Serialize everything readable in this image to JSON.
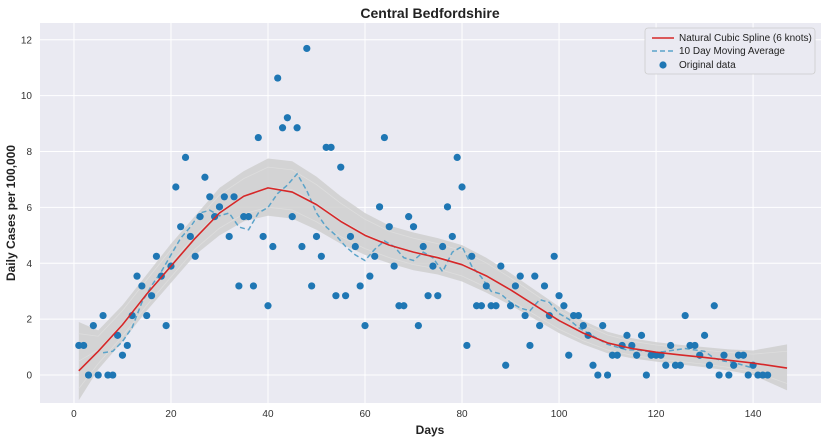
{
  "chart_data": {
    "type": "scatter",
    "title": "Central Bedfordshire",
    "xlabel": "Days",
    "ylabel": "Daily Cases per 100,000",
    "xlim": [
      -7,
      154
    ],
    "ylim": [
      -1,
      12.6
    ],
    "xticks": [
      0,
      20,
      40,
      60,
      80,
      100,
      120,
      140
    ],
    "yticks": [
      0,
      2,
      4,
      6,
      8,
      10,
      12
    ],
    "grid": true,
    "legend_position": "top-right",
    "colors": {
      "background": "#EAEAF2",
      "grid": "#ffffff",
      "spline": "#D62728",
      "moving_average": "#5BA3C9",
      "points": "#1F77B4",
      "band": "#CFCFCF"
    },
    "series": [
      {
        "name": "Natural Cubic Spline (6 knots)",
        "style": "line",
        "x": [
          1,
          5,
          10,
          15,
          20,
          25,
          30,
          35,
          40,
          45,
          50,
          55,
          60,
          65,
          70,
          75,
          80,
          85,
          90,
          95,
          100,
          105,
          110,
          115,
          120,
          125,
          130,
          135,
          140,
          147
        ],
        "y": [
          0.15,
          0.85,
          1.8,
          2.9,
          3.9,
          4.9,
          5.8,
          6.4,
          6.7,
          6.55,
          6.1,
          5.5,
          5.0,
          4.65,
          4.4,
          4.2,
          3.95,
          3.55,
          3.05,
          2.5,
          1.95,
          1.5,
          1.15,
          0.95,
          0.82,
          0.72,
          0.63,
          0.53,
          0.43,
          0.25
        ]
      },
      {
        "name": "10 Day Moving Average",
        "style": "dashed-line",
        "x": [
          6,
          8,
          10,
          12,
          14,
          16,
          18,
          20,
          22,
          24,
          26,
          28,
          30,
          32,
          34,
          36,
          38,
          40,
          42,
          44,
          46,
          48,
          50,
          52,
          54,
          56,
          58,
          60,
          62,
          64,
          66,
          68,
          70,
          72,
          74,
          76,
          78,
          80,
          82,
          84,
          86,
          88,
          90,
          92,
          94,
          96,
          98,
          100,
          102,
          104,
          106,
          108,
          110,
          112,
          114,
          116,
          118,
          120,
          122,
          124,
          126,
          128,
          130,
          132,
          134,
          136,
          138,
          140
        ],
        "y": [
          0.8,
          0.85,
          1.2,
          1.7,
          2.6,
          3.2,
          3.7,
          4.3,
          4.9,
          5.3,
          5.8,
          5.9,
          5.7,
          5.8,
          5.3,
          5.2,
          5.8,
          6.0,
          6.5,
          6.8,
          7.2,
          6.6,
          5.8,
          5.3,
          5.0,
          4.6,
          4.3,
          4.1,
          4.5,
          4.8,
          4.6,
          4.2,
          4.1,
          4.4,
          4.2,
          3.7,
          4.4,
          4.6,
          3.9,
          3.5,
          3.0,
          2.9,
          2.6,
          2.4,
          2.3,
          2.7,
          2.6,
          2.2,
          2.0,
          1.7,
          1.5,
          1.3,
          1.1,
          1.0,
          0.9,
          0.9,
          0.85,
          0.8,
          0.85,
          0.9,
          0.95,
          0.9,
          0.85,
          0.6,
          0.5,
          0.45,
          0.35,
          0.25
        ]
      },
      {
        "name": "Original data",
        "style": "points",
        "points": [
          [
            1,
            1.06
          ],
          [
            2,
            1.06
          ],
          [
            3,
            0
          ],
          [
            4,
            1.77
          ],
          [
            5,
            0
          ],
          [
            6,
            2.13
          ],
          [
            7,
            0
          ],
          [
            8,
            0
          ],
          [
            9,
            1.42
          ],
          [
            10,
            0.71
          ],
          [
            11,
            1.06
          ],
          [
            12,
            2.13
          ],
          [
            13,
            3.54
          ],
          [
            14,
            3.19
          ],
          [
            15,
            2.13
          ],
          [
            16,
            2.84
          ],
          [
            17,
            4.25
          ],
          [
            18,
            3.54
          ],
          [
            19,
            1.77
          ],
          [
            20,
            3.9
          ],
          [
            21,
            6.73
          ],
          [
            22,
            5.31
          ],
          [
            23,
            7.79
          ],
          [
            24,
            4.96
          ],
          [
            25,
            4.25
          ],
          [
            26,
            5.67
          ],
          [
            27,
            7.08
          ],
          [
            28,
            6.38
          ],
          [
            29,
            5.67
          ],
          [
            30,
            6.02
          ],
          [
            31,
            6.38
          ],
          [
            32,
            4.96
          ],
          [
            33,
            6.38
          ],
          [
            34,
            3.19
          ],
          [
            35,
            5.67
          ],
          [
            36,
            5.67
          ],
          [
            37,
            3.19
          ],
          [
            38,
            8.5
          ],
          [
            39,
            4.96
          ],
          [
            40,
            2.48
          ],
          [
            41,
            4.6
          ],
          [
            42,
            10.63
          ],
          [
            43,
            8.85
          ],
          [
            44,
            9.21
          ],
          [
            45,
            5.67
          ],
          [
            46,
            8.85
          ],
          [
            47,
            4.6
          ],
          [
            48,
            11.69
          ],
          [
            49,
            3.19
          ],
          [
            50,
            4.96
          ],
          [
            51,
            4.25
          ],
          [
            52,
            8.15
          ],
          [
            53,
            8.15
          ],
          [
            54,
            2.84
          ],
          [
            55,
            7.44
          ],
          [
            56,
            2.84
          ],
          [
            57,
            4.96
          ],
          [
            58,
            4.6
          ],
          [
            59,
            3.19
          ],
          [
            60,
            1.77
          ],
          [
            61,
            3.54
          ],
          [
            62,
            4.25
          ],
          [
            63,
            6.02
          ],
          [
            64,
            8.5
          ],
          [
            65,
            5.31
          ],
          [
            66,
            3.9
          ],
          [
            67,
            2.48
          ],
          [
            68,
            2.48
          ],
          [
            69,
            5.67
          ],
          [
            70,
            5.31
          ],
          [
            71,
            1.77
          ],
          [
            72,
            4.6
          ],
          [
            73,
            2.84
          ],
          [
            74,
            3.9
          ],
          [
            75,
            2.84
          ],
          [
            76,
            4.6
          ],
          [
            77,
            6.02
          ],
          [
            78,
            4.96
          ],
          [
            79,
            7.79
          ],
          [
            80,
            6.73
          ],
          [
            81,
            1.06
          ],
          [
            82,
            4.25
          ],
          [
            83,
            2.48
          ],
          [
            84,
            2.48
          ],
          [
            85,
            3.19
          ],
          [
            86,
            2.48
          ],
          [
            87,
            2.48
          ],
          [
            88,
            3.9
          ],
          [
            89,
            0.35
          ],
          [
            90,
            2.48
          ],
          [
            91,
            3.19
          ],
          [
            92,
            3.54
          ],
          [
            93,
            2.13
          ],
          [
            94,
            1.06
          ],
          [
            95,
            3.54
          ],
          [
            96,
            1.77
          ],
          [
            97,
            3.19
          ],
          [
            98,
            2.13
          ],
          [
            99,
            4.25
          ],
          [
            100,
            2.84
          ],
          [
            101,
            2.48
          ],
          [
            102,
            0.71
          ],
          [
            103,
            2.13
          ],
          [
            104,
            2.13
          ],
          [
            105,
            1.77
          ],
          [
            106,
            1.42
          ],
          [
            107,
            0.35
          ],
          [
            108,
            0
          ],
          [
            109,
            1.77
          ],
          [
            110,
            0
          ],
          [
            111,
            0.71
          ],
          [
            112,
            0.71
          ],
          [
            113,
            1.06
          ],
          [
            114,
            1.42
          ],
          [
            115,
            1.06
          ],
          [
            116,
            0.71
          ],
          [
            117,
            1.42
          ],
          [
            118,
            0
          ],
          [
            119,
            0.71
          ],
          [
            120,
            0.71
          ],
          [
            121,
            0.71
          ],
          [
            122,
            0.35
          ],
          [
            123,
            1.06
          ],
          [
            124,
            0.35
          ],
          [
            125,
            0.35
          ],
          [
            126,
            2.13
          ],
          [
            127,
            1.06
          ],
          [
            128,
            1.06
          ],
          [
            129,
            0.71
          ],
          [
            130,
            1.42
          ],
          [
            131,
            0.35
          ],
          [
            132,
            2.48
          ],
          [
            133,
            0
          ],
          [
            134,
            0.71
          ],
          [
            135,
            0
          ],
          [
            136,
            0.35
          ],
          [
            137,
            0.71
          ],
          [
            138,
            0.71
          ],
          [
            139,
            0
          ],
          [
            140,
            0.35
          ],
          [
            141,
            0
          ],
          [
            142,
            0
          ],
          [
            143,
            0
          ]
        ]
      }
    ],
    "band": {
      "description": "light grey bootstrap spline envelope",
      "x": [
        1,
        5,
        10,
        15,
        20,
        25,
        30,
        35,
        40,
        45,
        50,
        55,
        60,
        65,
        70,
        75,
        80,
        85,
        90,
        95,
        100,
        105,
        110,
        115,
        120,
        125,
        130,
        135,
        140,
        147
      ],
      "lower": [
        -0.9,
        0.2,
        1.2,
        2.3,
        3.3,
        4.3,
        5.0,
        5.5,
        5.7,
        5.6,
        5.2,
        4.7,
        4.3,
        4.0,
        3.75,
        3.6,
        3.35,
        2.95,
        2.5,
        2.0,
        1.5,
        1.1,
        0.78,
        0.6,
        0.48,
        0.38,
        0.28,
        0.16,
        0.0,
        -0.55
      ],
      "upper": [
        1.9,
        1.6,
        2.5,
        3.6,
        4.7,
        5.7,
        6.7,
        7.3,
        7.75,
        7.65,
        7.1,
        6.4,
        5.8,
        5.35,
        5.1,
        4.9,
        4.65,
        4.2,
        3.65,
        3.05,
        2.45,
        1.95,
        1.55,
        1.32,
        1.18,
        1.08,
        1.0,
        0.92,
        0.88,
        1.1
      ]
    }
  }
}
